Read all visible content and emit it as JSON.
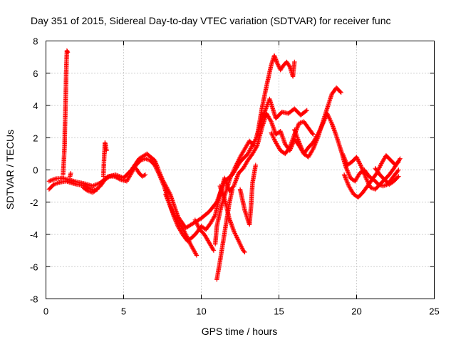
{
  "chart_data": {
    "type": "scatter",
    "title": "Day 351 of 2015, Sidereal Day-to-day VTEC variation (SDTVAR) for receiver func",
    "xlabel": "GPS time / hours",
    "ylabel": "SDTVAR / TECUs",
    "xlim": [
      0,
      25
    ],
    "ylim": [
      -8,
      8
    ],
    "xticks": [
      "0",
      "5",
      "10",
      "15",
      "20",
      "25"
    ],
    "yticks": [
      "-8",
      "-6",
      "-4",
      "-2",
      "0",
      "2",
      "4",
      "6",
      "8"
    ],
    "grid": true,
    "marker": "+",
    "color": "#ff0000",
    "series": [
      {
        "name": "SDTVAR",
        "segments": [
          [
            [
              0.2,
              -1.2
            ],
            [
              0.5,
              -0.9
            ],
            [
              0.8,
              -0.8
            ],
            [
              1.0,
              -0.75
            ],
            [
              1.3,
              -0.7
            ],
            [
              1.6,
              -0.8
            ],
            [
              2.0,
              -0.9
            ],
            [
              2.3,
              -0.95
            ],
            [
              2.6,
              -1.05
            ],
            [
              2.9,
              -1.2
            ],
            [
              3.2,
              -1.25
            ],
            [
              3.5,
              -1.0
            ],
            [
              3.8,
              -0.6
            ],
            [
              4.1,
              -0.4
            ],
            [
              4.4,
              -0.4
            ],
            [
              4.8,
              -0.6
            ],
            [
              5.2,
              -0.7
            ],
            [
              5.5,
              -0.2
            ],
            [
              5.8,
              0.3
            ],
            [
              6.1,
              0.6
            ],
            [
              6.4,
              0.7
            ],
            [
              6.7,
              0.6
            ],
            [
              7.0,
              0.3
            ],
            [
              7.3,
              -0.3
            ],
            [
              7.6,
              -1.0
            ],
            [
              7.9,
              -1.9
            ],
            [
              8.2,
              -2.8
            ],
            [
              8.5,
              -3.5
            ],
            [
              8.8,
              -4.0
            ],
            [
              9.1,
              -4.4
            ],
            [
              9.4,
              -4.2
            ],
            [
              9.7,
              -3.9
            ],
            [
              10.0,
              -3.5
            ],
            [
              10.3,
              -3.7
            ],
            [
              10.6,
              -3.3
            ],
            [
              10.9,
              -2.8
            ],
            [
              11.2,
              -1.5
            ],
            [
              11.5,
              -0.5
            ],
            [
              11.8,
              -1.3
            ],
            [
              12.1,
              -1.0
            ],
            [
              12.4,
              -0.2
            ],
            [
              12.7,
              0.1
            ],
            [
              13.0,
              0.6
            ],
            [
              13.3,
              1.0
            ],
            [
              13.6,
              1.5
            ],
            [
              13.9,
              2.6
            ],
            [
              14.2,
              3.5
            ],
            [
              14.5,
              3.0
            ],
            [
              14.8,
              2.2
            ],
            [
              15.1,
              2.4
            ],
            [
              15.4,
              1.6
            ],
            [
              15.7,
              1.2
            ],
            [
              16.0,
              1.9
            ],
            [
              16.3,
              1.5
            ],
            [
              16.6,
              1.0
            ],
            [
              16.9,
              1.4
            ],
            [
              17.2,
              1.7
            ],
            [
              17.5,
              2.2
            ],
            [
              17.8,
              2.8
            ],
            [
              18.1,
              3.5
            ],
            [
              18.4,
              2.9
            ],
            [
              18.7,
              2.1
            ],
            [
              19.0,
              1.2
            ],
            [
              19.3,
              0.2
            ],
            [
              19.6,
              -0.5
            ],
            [
              19.9,
              -0.7
            ],
            [
              20.2,
              -0.2
            ],
            [
              20.5,
              0.0
            ],
            [
              20.8,
              -0.4
            ],
            [
              21.1,
              -0.6
            ],
            [
              21.4,
              -0.9
            ],
            [
              21.7,
              -1.0
            ],
            [
              22.0,
              -0.9
            ],
            [
              22.3,
              -0.5
            ],
            [
              22.7,
              0.0
            ]
          ],
          [
            [
              0.2,
              -0.7
            ],
            [
              0.6,
              -0.55
            ],
            [
              1.0,
              -0.5
            ],
            [
              1.5,
              -0.6
            ],
            [
              2.0,
              -0.75
            ],
            [
              2.5,
              -0.85
            ],
            [
              3.0,
              -1.0
            ],
            [
              3.5,
              -0.8
            ],
            [
              4.0,
              -0.4
            ],
            [
              4.5,
              -0.3
            ],
            [
              5.0,
              -0.5
            ],
            [
              5.5,
              0.0
            ],
            [
              6.0,
              0.7
            ],
            [
              6.5,
              1.0
            ],
            [
              7.0,
              0.6
            ],
            [
              7.5,
              -0.6
            ],
            [
              8.0,
              -1.5
            ],
            [
              8.5,
              -2.9
            ],
            [
              9.0,
              -3.6
            ],
            [
              9.5,
              -3.3
            ],
            [
              10.0,
              -3.0
            ],
            [
              10.5,
              -2.6
            ],
            [
              11.0,
              -2.0
            ],
            [
              11.5,
              -0.7
            ],
            [
              12.0,
              -0.3
            ],
            [
              12.5,
              0.5
            ],
            [
              13.0,
              1.0
            ],
            [
              13.5,
              1.9
            ],
            [
              14.0,
              3.4
            ],
            [
              14.4,
              4.4
            ],
            [
              14.8,
              3.2
            ],
            [
              15.2,
              3.6
            ],
            [
              15.6,
              3.5
            ],
            [
              16.0,
              3.8
            ],
            [
              16.4,
              3.4
            ],
            [
              16.8,
              3.7
            ]
          ],
          [
            [
              7.7,
              -1.5
            ],
            [
              8.1,
              -2.5
            ],
            [
              8.5,
              -3.2
            ],
            [
              8.9,
              -3.8
            ],
            [
              9.3,
              -4.6
            ],
            [
              9.7,
              -5.3
            ]
          ],
          [
            [
              9.6,
              -3.1
            ],
            [
              9.9,
              -3.7
            ],
            [
              10.2,
              -4.0
            ],
            [
              10.5,
              -4.5
            ],
            [
              10.8,
              -5.0
            ]
          ],
          [
            [
              10.9,
              -4.6
            ],
            [
              11.0,
              -3.5
            ],
            [
              11.3,
              -2.2
            ],
            [
              11.6,
              -1.3
            ],
            [
              11.9,
              -0.4
            ],
            [
              12.2,
              0.2
            ],
            [
              12.5,
              0.8
            ],
            [
              12.8,
              1.3
            ],
            [
              13.1,
              1.8
            ],
            [
              13.4,
              1.5
            ]
          ],
          [
            [
              11.2,
              -1.0
            ],
            [
              11.5,
              -1.8
            ],
            [
              11.8,
              -3.0
            ],
            [
              12.1,
              -3.8
            ],
            [
              12.4,
              -4.4
            ],
            [
              12.7,
              -5.0
            ],
            [
              12.8,
              -5.1
            ]
          ],
          [
            [
              11.0,
              -6.8
            ],
            [
              11.2,
              -5.7
            ],
            [
              11.4,
              -4.5
            ],
            [
              11.6,
              -3.3
            ],
            [
              11.8,
              -2.1
            ],
            [
              12.0,
              -1.2
            ]
          ],
          [
            [
              12.5,
              -1.2
            ],
            [
              12.8,
              -2.5
            ],
            [
              13.1,
              -3.4
            ],
            [
              13.2,
              -2.3
            ],
            [
              13.3,
              -0.8
            ],
            [
              13.5,
              0.3
            ]
          ],
          [
            [
              13.6,
              2.1
            ],
            [
              13.9,
              3.8
            ],
            [
              14.2,
              5.2
            ],
            [
              14.5,
              6.5
            ],
            [
              14.7,
              7.1
            ],
            [
              14.9,
              6.6
            ],
            [
              15.1,
              6.2
            ],
            [
              15.3,
              6.5
            ],
            [
              15.5,
              6.7
            ],
            [
              15.7,
              6.4
            ],
            [
              15.9,
              5.8
            ],
            [
              16.0,
              6.7
            ]
          ],
          [
            [
              14.5,
              2.3
            ],
            [
              14.8,
              1.7
            ],
            [
              15.1,
              1.2
            ],
            [
              15.4,
              1.0
            ],
            [
              15.7,
              1.4
            ],
            [
              16.0,
              2.2
            ],
            [
              16.3,
              2.9
            ],
            [
              16.6,
              3.0
            ],
            [
              16.9,
              2.6
            ],
            [
              17.2,
              2.2
            ]
          ],
          [
            [
              16.0,
              2.5
            ],
            [
              16.3,
              1.7
            ],
            [
              16.6,
              1.0
            ],
            [
              16.9,
              0.8
            ],
            [
              17.2,
              1.3
            ],
            [
              17.5,
              2.0
            ],
            [
              17.8,
              2.9
            ],
            [
              18.1,
              3.8
            ],
            [
              18.4,
              4.7
            ],
            [
              18.7,
              5.1
            ],
            [
              19.0,
              4.8
            ]
          ],
          [
            [
              19.1,
              1.0
            ],
            [
              19.4,
              0.3
            ],
            [
              19.7,
              0.5
            ],
            [
              20.0,
              0.8
            ],
            [
              20.3,
              0.2
            ],
            [
              20.6,
              -0.5
            ],
            [
              20.9,
              -1.1
            ],
            [
              21.2,
              -1.2
            ],
            [
              21.5,
              -0.9
            ],
            [
              21.8,
              -0.6
            ],
            [
              22.1,
              -0.3
            ],
            [
              22.4,
              0.1
            ],
            [
              22.8,
              0.7
            ]
          ],
          [
            [
              19.2,
              -0.3
            ],
            [
              19.5,
              -1.0
            ],
            [
              19.8,
              -1.5
            ],
            [
              20.1,
              -1.7
            ],
            [
              20.4,
              -1.4
            ],
            [
              20.7,
              -1.0
            ],
            [
              21.0,
              -0.6
            ],
            [
              21.3,
              -0.2
            ],
            [
              21.6,
              0.4
            ],
            [
              21.9,
              0.9
            ],
            [
              22.2,
              0.6
            ],
            [
              22.5,
              0.3
            ],
            [
              22.7,
              0.5
            ]
          ],
          [
            [
              21.2,
              0.1
            ],
            [
              21.5,
              -0.3
            ],
            [
              21.8,
              -0.6
            ],
            [
              22.1,
              -0.9
            ],
            [
              22.4,
              -0.7
            ],
            [
              22.7,
              -0.4
            ]
          ],
          [
            [
              1.1,
              -0.3
            ],
            [
              1.15,
              0.5
            ],
            [
              1.2,
              1.5
            ],
            [
              1.22,
              2.6
            ],
            [
              1.25,
              3.6
            ],
            [
              1.28,
              4.8
            ],
            [
              1.3,
              5.9
            ],
            [
              1.33,
              6.9
            ],
            [
              1.35,
              7.4
            ],
            [
              1.4,
              7.3
            ]
          ],
          [
            [
              1.55,
              -0.4
            ],
            [
              1.6,
              -0.2
            ]
          ],
          [
            [
              3.7,
              -0.4
            ],
            [
              3.72,
              0.2
            ],
            [
              3.75,
              0.8
            ],
            [
              3.78,
              1.3
            ],
            [
              3.8,
              1.7
            ],
            [
              3.85,
              1.5
            ],
            [
              3.9,
              1.2
            ]
          ],
          [
            [
              2.4,
              -1.1
            ],
            [
              2.7,
              -1.3
            ],
            [
              3.0,
              -1.4
            ],
            [
              3.3,
              -1.2
            ]
          ],
          [
            [
              5.8,
              0.1
            ],
            [
              6.0,
              -0.2
            ],
            [
              6.2,
              -0.4
            ],
            [
              6.4,
              -0.3
            ]
          ]
        ]
      }
    ]
  }
}
